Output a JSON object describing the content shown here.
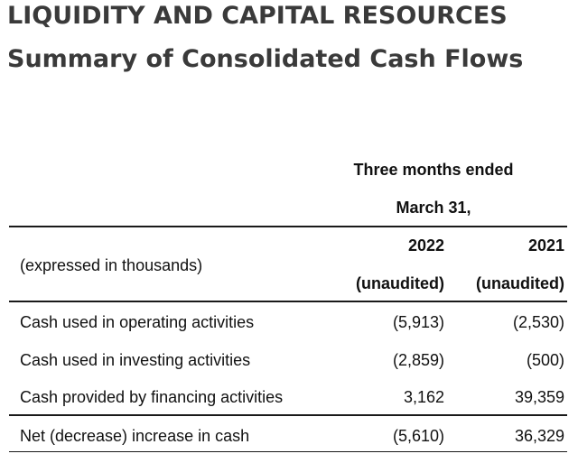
{
  "header": {
    "title": "LIQUIDITY  AND CAPITAL RESOURCES",
    "subtitle": "Summary of Consolidated Cash Flows"
  },
  "table": {
    "period_line1": "Three months ended",
    "period_line2": "March 31,",
    "row_label_header": "(expressed in thousands)",
    "columns": [
      {
        "year": "2022",
        "status": "(unaudited)"
      },
      {
        "year": "2021",
        "status": "(unaudited)"
      }
    ],
    "rows": [
      {
        "label": "Cash used in operating activities",
        "values": [
          "(5,913)",
          "(2,530)"
        ]
      },
      {
        "label": "Cash used in investing activities",
        "values": [
          "(2,859)",
          "(500)"
        ]
      },
      {
        "label": "Cash provided by financing activities",
        "values": [
          "3,162",
          "39,359"
        ]
      }
    ],
    "total": {
      "label": "Net (decrease) increase in cash",
      "values": [
        "(5,610)",
        "36,329"
      ]
    }
  }
}
